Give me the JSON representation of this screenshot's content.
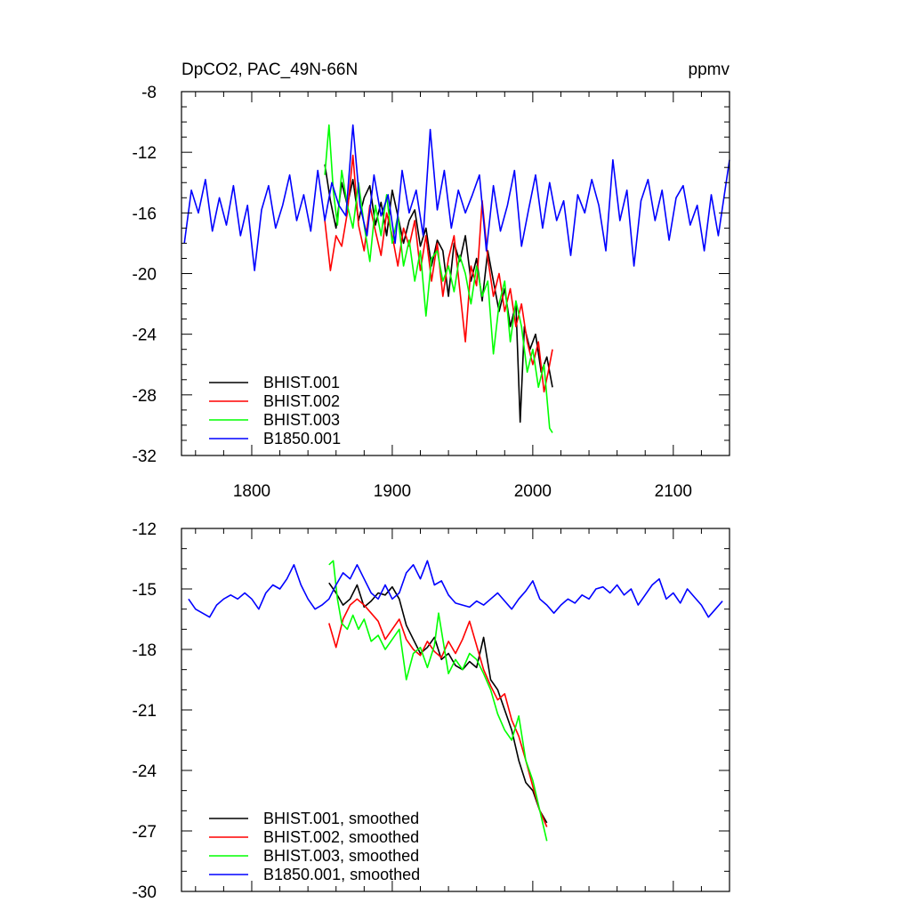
{
  "chart_data": [
    {
      "type": "line",
      "title": "DpCO2, PAC_49N-66N",
      "units": "ppmv",
      "xlim": [
        1750,
        2140
      ],
      "ylim": [
        -32,
        -8
      ],
      "x_ticks": [
        1800,
        1900,
        2000,
        2100
      ],
      "y_ticks": [
        -8,
        -12,
        -16,
        -20,
        -24,
        -28,
        -32
      ],
      "x_tick_labels": [
        "1800",
        "1900",
        "2000",
        "2100"
      ],
      "y_tick_labels": [
        "-8",
        "-12",
        "-16",
        "-20",
        "-24",
        "-28",
        "-32"
      ],
      "grid": false,
      "legend_position": "bottom-left",
      "series": [
        {
          "name": "BHIST.001",
          "color": "#000000",
          "x": [
            1852,
            1856,
            1860,
            1864,
            1868,
            1872,
            1876,
            1880,
            1884,
            1888,
            1892,
            1896,
            1900,
            1904,
            1908,
            1912,
            1916,
            1920,
            1924,
            1928,
            1932,
            1936,
            1940,
            1944,
            1948,
            1952,
            1956,
            1960,
            1964,
            1968,
            1972,
            1976,
            1980,
            1984,
            1988,
            1991,
            1994,
            1998,
            2002,
            2006,
            2010,
            2014
          ],
          "y": [
            -12.8,
            -15.2,
            -17.0,
            -14.0,
            -15.5,
            -13.8,
            -16.5,
            -15.0,
            -14.2,
            -16.8,
            -15.3,
            -17.5,
            -14.5,
            -16.2,
            -18.0,
            -16.5,
            -15.8,
            -18.2,
            -17.0,
            -19.5,
            -17.8,
            -18.5,
            -21.5,
            -18.0,
            -19.2,
            -17.5,
            -20.5,
            -19.0,
            -21.8,
            -18.5,
            -20.5,
            -22.5,
            -21.0,
            -23.5,
            -22.0,
            -29.8,
            -23.5,
            -25.0,
            -24.0,
            -26.5,
            -25.5,
            -27.5
          ]
        },
        {
          "name": "BHIST.002",
          "color": "#ff0000",
          "x": [
            1852,
            1856,
            1860,
            1864,
            1868,
            1872,
            1876,
            1880,
            1884,
            1888,
            1892,
            1896,
            1900,
            1904,
            1908,
            1912,
            1916,
            1920,
            1924,
            1928,
            1932,
            1936,
            1940,
            1944,
            1948,
            1952,
            1956,
            1960,
            1964,
            1968,
            1972,
            1976,
            1980,
            1984,
            1988,
            1992,
            1996,
            2000,
            2004,
            2008,
            2011,
            2014
          ],
          "y": [
            -16.5,
            -19.8,
            -17.5,
            -18.2,
            -16.0,
            -12.2,
            -16.8,
            -18.5,
            -15.5,
            -17.2,
            -18.8,
            -16.0,
            -17.5,
            -19.5,
            -17.0,
            -18.2,
            -16.5,
            -19.8,
            -17.5,
            -20.5,
            -18.0,
            -21.5,
            -19.0,
            -17.5,
            -21.0,
            -24.5,
            -19.5,
            -20.8,
            -15.2,
            -19.0,
            -21.5,
            -20.0,
            -22.5,
            -21.0,
            -23.5,
            -22.0,
            -24.5,
            -26.0,
            -24.5,
            -27.8,
            -26.5,
            -25.0
          ]
        },
        {
          "name": "BHIST.003",
          "color": "#00ff00",
          "x": [
            1852,
            1855,
            1858,
            1861,
            1864,
            1868,
            1872,
            1876,
            1880,
            1884,
            1888,
            1892,
            1896,
            1900,
            1904,
            1908,
            1912,
            1916,
            1920,
            1924,
            1928,
            1932,
            1936,
            1940,
            1944,
            1948,
            1952,
            1956,
            1960,
            1964,
            1968,
            1972,
            1976,
            1980,
            1984,
            1988,
            1992,
            1996,
            2000,
            2004,
            2008,
            2012,
            2014
          ],
          "y": [
            -13.5,
            -10.2,
            -14.5,
            -16.8,
            -13.2,
            -15.5,
            -17.0,
            -14.0,
            -16.8,
            -19.2,
            -15.5,
            -17.5,
            -14.8,
            -18.0,
            -16.2,
            -19.5,
            -17.8,
            -20.5,
            -18.5,
            -22.8,
            -19.0,
            -18.5,
            -20.5,
            -19.5,
            -21.2,
            -18.8,
            -20.0,
            -22.0,
            -19.5,
            -21.5,
            -20.5,
            -25.3,
            -22.0,
            -20.5,
            -24.5,
            -21.8,
            -23.5,
            -26.5,
            -25.0,
            -27.5,
            -26.0,
            -30.2,
            -30.5
          ]
        },
        {
          "name": "B1850.001",
          "color": "#0000ff",
          "x": [
            1752,
            1757,
            1762,
            1767,
            1772,
            1777,
            1782,
            1787,
            1792,
            1797,
            1802,
            1807,
            1812,
            1817,
            1822,
            1827,
            1832,
            1837,
            1842,
            1847,
            1852,
            1857,
            1862,
            1867,
            1872,
            1877,
            1882,
            1887,
            1892,
            1897,
            1902,
            1907,
            1912,
            1917,
            1922,
            1927,
            1932,
            1937,
            1942,
            1947,
            1952,
            1957,
            1962,
            1967,
            1972,
            1977,
            1982,
            1987,
            1992,
            1997,
            2002,
            2007,
            2012,
            2017,
            2022,
            2027,
            2032,
            2037,
            2042,
            2047,
            2052,
            2057,
            2062,
            2067,
            2072,
            2077,
            2082,
            2087,
            2092,
            2097,
            2102,
            2107,
            2112,
            2117,
            2122,
            2127,
            2132,
            2136,
            2140
          ],
          "y": [
            -18.0,
            -14.5,
            -16.0,
            -13.8,
            -17.2,
            -15.0,
            -16.8,
            -14.2,
            -17.5,
            -15.5,
            -19.8,
            -15.8,
            -14.2,
            -17.0,
            -15.5,
            -13.5,
            -16.5,
            -14.8,
            -17.2,
            -13.2,
            -16.5,
            -14.0,
            -15.5,
            -16.2,
            -10.2,
            -15.5,
            -17.5,
            -13.5,
            -16.2,
            -14.8,
            -18.0,
            -13.2,
            -16.0,
            -14.5,
            -17.5,
            -10.5,
            -15.8,
            -13.2,
            -17.0,
            -14.5,
            -16.0,
            -14.8,
            -13.5,
            -18.5,
            -14.2,
            -17.2,
            -15.5,
            -13.2,
            -18.2,
            -15.8,
            -13.5,
            -17.0,
            -14.0,
            -16.5,
            -15.2,
            -18.8,
            -14.8,
            -16.0,
            -13.8,
            -15.5,
            -18.5,
            -12.5,
            -16.5,
            -14.5,
            -19.5,
            -15.2,
            -13.8,
            -16.5,
            -14.5,
            -17.8,
            -15.0,
            -14.2,
            -16.8,
            -15.5,
            -18.5,
            -14.8,
            -17.5,
            -15.0,
            -12.5
          ]
        }
      ]
    },
    {
      "type": "line",
      "xlim": [
        1750,
        2140
      ],
      "ylim": [
        -30,
        -12
      ],
      "x_ticks": [
        1800,
        1900,
        2000,
        2100
      ],
      "y_ticks": [
        -12,
        -15,
        -18,
        -21,
        -24,
        -27,
        -30
      ],
      "y_tick_labels": [
        "-12",
        "-15",
        "-18",
        "-21",
        "-24",
        "-27",
        "-30"
      ],
      "grid": false,
      "legend_position": "bottom-left",
      "series": [
        {
          "name": "BHIST.001, smoothed",
          "color": "#000000",
          "x": [
            1855,
            1860,
            1865,
            1870,
            1875,
            1880,
            1885,
            1890,
            1895,
            1900,
            1905,
            1910,
            1915,
            1920,
            1925,
            1930,
            1935,
            1940,
            1945,
            1950,
            1955,
            1960,
            1965,
            1970,
            1975,
            1980,
            1985,
            1990,
            1995,
            2000,
            2005,
            2010
          ],
          "y": [
            -14.7,
            -15.2,
            -15.8,
            -15.5,
            -14.8,
            -15.9,
            -15.6,
            -15.2,
            -15.3,
            -14.9,
            -15.5,
            -16.8,
            -17.5,
            -18.2,
            -17.9,
            -17.4,
            -18.5,
            -18.2,
            -18.8,
            -19.0,
            -18.6,
            -18.9,
            -17.4,
            -19.5,
            -20.0,
            -21.0,
            -22.0,
            -23.5,
            -24.6,
            -25.0,
            -26.0,
            -26.6
          ]
        },
        {
          "name": "BHIST.002, smoothed",
          "color": "#ff0000",
          "x": [
            1855,
            1860,
            1865,
            1870,
            1875,
            1880,
            1885,
            1890,
            1895,
            1900,
            1905,
            1910,
            1915,
            1920,
            1925,
            1930,
            1935,
            1940,
            1945,
            1950,
            1955,
            1960,
            1965,
            1970,
            1975,
            1980,
            1985,
            1990,
            1995,
            2000,
            2005,
            2010
          ],
          "y": [
            -16.7,
            -17.9,
            -16.5,
            -15.8,
            -15.5,
            -15.8,
            -16.2,
            -16.6,
            -17.5,
            -17.0,
            -16.5,
            -17.5,
            -18.0,
            -18.3,
            -17.6,
            -18.1,
            -18.4,
            -17.6,
            -18.2,
            -17.5,
            -16.6,
            -17.8,
            -19.0,
            -19.8,
            -20.5,
            -20.2,
            -21.5,
            -22.3,
            -23.5,
            -24.8,
            -26.0,
            -26.8
          ]
        },
        {
          "name": "BHIST.003, smoothed",
          "color": "#00ff00",
          "x": [
            1855,
            1858,
            1861,
            1864,
            1868,
            1872,
            1876,
            1880,
            1885,
            1890,
            1895,
            1900,
            1905,
            1910,
            1915,
            1920,
            1925,
            1930,
            1933,
            1936,
            1940,
            1945,
            1950,
            1955,
            1960,
            1965,
            1970,
            1975,
            1980,
            1985,
            1990,
            1995,
            2000,
            2005,
            2010
          ],
          "y": [
            -13.8,
            -13.6,
            -15.5,
            -16.7,
            -17.0,
            -16.3,
            -17.0,
            -16.5,
            -17.6,
            -17.3,
            -18.0,
            -17.5,
            -17.0,
            -19.5,
            -18.2,
            -17.9,
            -18.9,
            -17.8,
            -16.2,
            -17.5,
            -19.2,
            -18.5,
            -19.0,
            -18.2,
            -18.5,
            -19.2,
            -20.0,
            -21.2,
            -22.0,
            -22.5,
            -21.3,
            -23.5,
            -24.5,
            -26.0,
            -27.5
          ]
        },
        {
          "name": "B1850.001, smoothed",
          "color": "#0000ff",
          "x": [
            1755,
            1760,
            1765,
            1770,
            1775,
            1780,
            1785,
            1790,
            1795,
            1800,
            1805,
            1810,
            1815,
            1820,
            1825,
            1830,
            1835,
            1840,
            1845,
            1850,
            1855,
            1860,
            1865,
            1870,
            1875,
            1880,
            1885,
            1890,
            1895,
            1900,
            1905,
            1910,
            1915,
            1920,
            1925,
            1930,
            1935,
            1940,
            1945,
            1950,
            1955,
            1960,
            1965,
            1970,
            1975,
            1980,
            1985,
            1990,
            1995,
            2000,
            2005,
            2010,
            2015,
            2020,
            2025,
            2030,
            2035,
            2040,
            2045,
            2050,
            2055,
            2060,
            2065,
            2070,
            2075,
            2080,
            2085,
            2090,
            2095,
            2100,
            2105,
            2110,
            2115,
            2120,
            2125,
            2130,
            2135
          ],
          "y": [
            -15.5,
            -16.0,
            -16.2,
            -16.4,
            -15.8,
            -15.5,
            -15.3,
            -15.5,
            -15.2,
            -15.5,
            -16.0,
            -15.2,
            -14.8,
            -15.0,
            -14.5,
            -13.8,
            -14.8,
            -15.5,
            -16.0,
            -15.8,
            -15.5,
            -14.8,
            -14.2,
            -14.5,
            -13.8,
            -14.5,
            -15.2,
            -15.5,
            -14.8,
            -15.5,
            -15.2,
            -14.2,
            -13.8,
            -14.5,
            -13.6,
            -14.8,
            -14.6,
            -15.3,
            -15.7,
            -15.8,
            -15.9,
            -15.6,
            -15.8,
            -15.5,
            -15.2,
            -15.6,
            -16.0,
            -15.5,
            -15.1,
            -14.6,
            -15.5,
            -15.8,
            -16.2,
            -15.8,
            -15.5,
            -15.7,
            -15.3,
            -15.5,
            -15.0,
            -14.9,
            -15.2,
            -14.8,
            -15.3,
            -15.0,
            -15.8,
            -15.3,
            -14.8,
            -14.5,
            -15.5,
            -15.2,
            -15.7,
            -15.0,
            -15.4,
            -15.8,
            -16.4,
            -16.0,
            -15.6
          ]
        }
      ]
    }
  ]
}
